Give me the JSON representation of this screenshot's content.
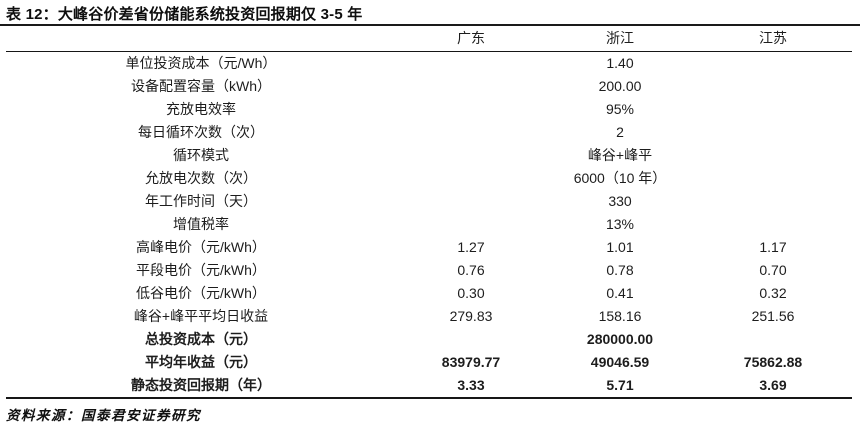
{
  "title": "表 12：大峰谷价差省份储能系统投资回报期仅 3-5 年",
  "source_note": "资料来源：国泰君安证券研究",
  "colors": {
    "text": "#1d1d1d",
    "rule": "#161616",
    "background": "#ffffff"
  },
  "table": {
    "corner_header": "",
    "columns": [
      "广东",
      "浙江",
      "江苏"
    ],
    "rows": [
      {
        "label": "单位投资成本（元/Wh）",
        "merged_value": "1.40",
        "bold": false
      },
      {
        "label": "设备配置容量（kWh）",
        "merged_value": "200.00",
        "bold": false
      },
      {
        "label": "充放电效率",
        "merged_value": "95%",
        "bold": false
      },
      {
        "label": "每日循环次数（次）",
        "merged_value": "2",
        "bold": false
      },
      {
        "label": "循环模式",
        "merged_value": "峰谷+峰平",
        "bold": false
      },
      {
        "label": "允放电次数（次）",
        "merged_value": "6000（10 年）",
        "bold": false
      },
      {
        "label": "年工作时间（天）",
        "merged_value": "330",
        "bold": false
      },
      {
        "label": "增值税率",
        "merged_value": "13%",
        "bold": false
      },
      {
        "label": "高峰电价（元/kWh）",
        "values": [
          "1.27",
          "1.01",
          "1.17"
        ],
        "bold": false
      },
      {
        "label": "平段电价（元/kWh）",
        "values": [
          "0.76",
          "0.78",
          "0.70"
        ],
        "bold": false
      },
      {
        "label": "低谷电价（元/kWh）",
        "values": [
          "0.30",
          "0.41",
          "0.32"
        ],
        "bold": false
      },
      {
        "label": "峰谷+峰平平均日收益",
        "values": [
          "279.83",
          "158.16",
          "251.56"
        ],
        "bold": false
      },
      {
        "label": "总投资成本（元）",
        "merged_value": "280000.00",
        "bold": true
      },
      {
        "label": "平均年收益（元）",
        "values": [
          "83979.77",
          "49046.59",
          "75862.88"
        ],
        "bold": true
      },
      {
        "label": "静态投资回报期（年）",
        "values": [
          "3.33",
          "5.71",
          "3.69"
        ],
        "bold": true
      }
    ]
  }
}
